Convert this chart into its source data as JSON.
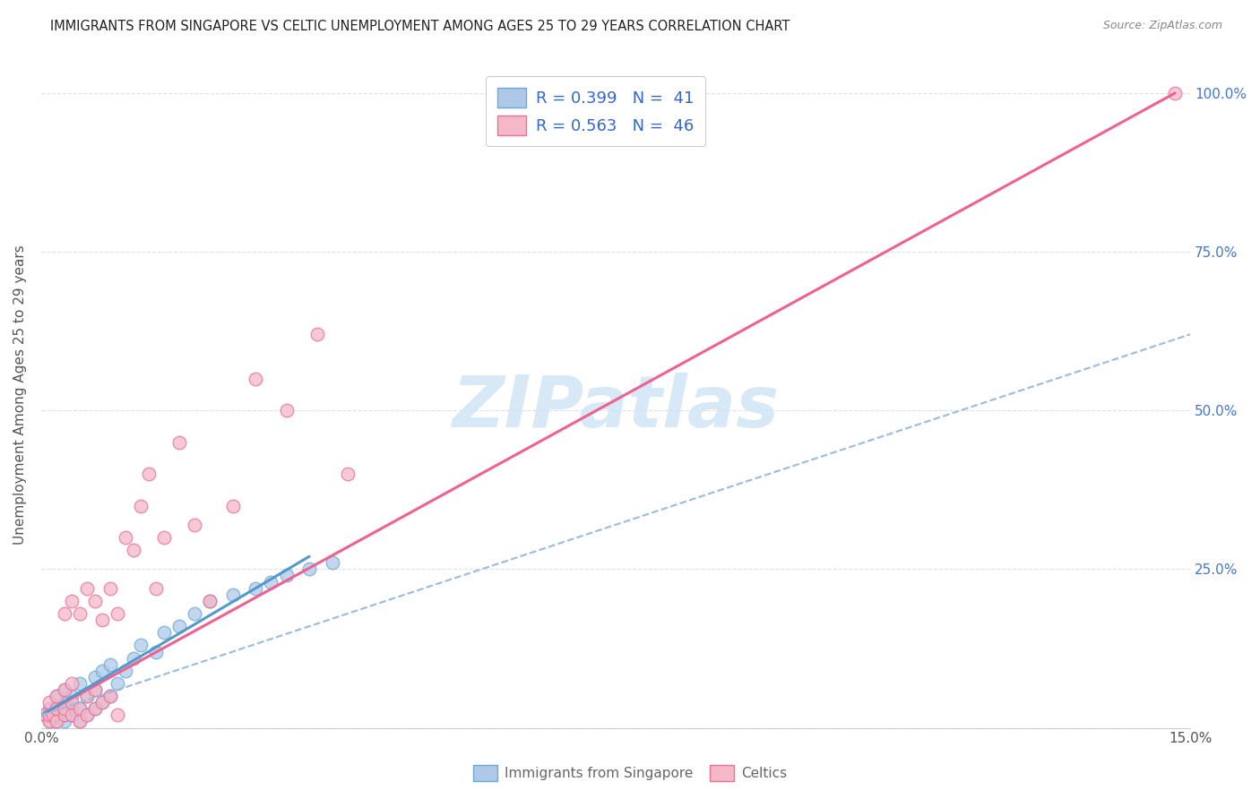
{
  "title": "IMMIGRANTS FROM SINGAPORE VS CELTIC UNEMPLOYMENT AMONG AGES 25 TO 29 YEARS CORRELATION CHART",
  "source": "Source: ZipAtlas.com",
  "ylabel": "Unemployment Among Ages 25 to 29 years",
  "xlim": [
    0,
    0.15
  ],
  "ylim": [
    0,
    1.05
  ],
  "xtick_positions": [
    0.0,
    0.025,
    0.05,
    0.075,
    0.1,
    0.125,
    0.15
  ],
  "xticklabels": [
    "0.0%",
    "",
    "",
    "",
    "",
    "",
    "15.0%"
  ],
  "ytick_positions": [
    0.0,
    0.25,
    0.5,
    0.75,
    1.0
  ],
  "yticklabels_right": [
    "",
    "25.0%",
    "50.0%",
    "75.0%",
    "100.0%"
  ],
  "legend_r1": "R = 0.399",
  "legend_n1": "N =  41",
  "legend_r2": "R = 0.563",
  "legend_n2": "N =  46",
  "legend_label1": "Immigrants from Singapore",
  "legend_label2": "Celtics",
  "color_singapore_fill": "#aec9e8",
  "color_singapore_edge": "#6aaad4",
  "color_celtics_fill": "#f5b8c8",
  "color_celtics_edge": "#e8709a",
  "color_singapore_line": "#5599cc",
  "color_celtics_line": "#f06090",
  "color_dashed": "#99bbdd",
  "watermark_color": "#d0e5f5",
  "background_color": "#ffffff",
  "grid_color": "#dddddd",
  "title_color": "#222222",
  "source_color": "#888888",
  "ylabel_color": "#555555",
  "right_tick_color": "#4477cc",
  "legend_text_color": "#3366cc",
  "bottom_legend_color": "#666666",
  "singapore_scatter_x": [
    0.0005,
    0.001,
    0.001,
    0.0015,
    0.002,
    0.002,
    0.002,
    0.003,
    0.003,
    0.003,
    0.003,
    0.004,
    0.004,
    0.004,
    0.005,
    0.005,
    0.005,
    0.006,
    0.006,
    0.007,
    0.007,
    0.007,
    0.008,
    0.008,
    0.009,
    0.009,
    0.01,
    0.011,
    0.012,
    0.013,
    0.015,
    0.016,
    0.018,
    0.02,
    0.022,
    0.025,
    0.028,
    0.03,
    0.032,
    0.035,
    0.038
  ],
  "singapore_scatter_y": [
    0.02,
    0.01,
    0.03,
    0.02,
    0.01,
    0.03,
    0.05,
    0.01,
    0.02,
    0.04,
    0.06,
    0.02,
    0.03,
    0.05,
    0.01,
    0.03,
    0.07,
    0.02,
    0.05,
    0.03,
    0.06,
    0.08,
    0.04,
    0.09,
    0.05,
    0.1,
    0.07,
    0.09,
    0.11,
    0.13,
    0.12,
    0.15,
    0.16,
    0.18,
    0.2,
    0.21,
    0.22,
    0.23,
    0.24,
    0.25,
    0.26
  ],
  "celtics_scatter_x": [
    0.0005,
    0.001,
    0.001,
    0.001,
    0.0015,
    0.002,
    0.002,
    0.002,
    0.003,
    0.003,
    0.003,
    0.003,
    0.004,
    0.004,
    0.004,
    0.004,
    0.005,
    0.005,
    0.005,
    0.006,
    0.006,
    0.006,
    0.007,
    0.007,
    0.007,
    0.008,
    0.008,
    0.009,
    0.009,
    0.01,
    0.01,
    0.011,
    0.012,
    0.013,
    0.014,
    0.015,
    0.016,
    0.018,
    0.02,
    0.022,
    0.025,
    0.028,
    0.032,
    0.036,
    0.04,
    0.148
  ],
  "celtics_scatter_y": [
    0.02,
    0.01,
    0.02,
    0.04,
    0.02,
    0.01,
    0.03,
    0.05,
    0.02,
    0.03,
    0.06,
    0.18,
    0.02,
    0.04,
    0.07,
    0.2,
    0.01,
    0.03,
    0.18,
    0.02,
    0.05,
    0.22,
    0.03,
    0.06,
    0.2,
    0.04,
    0.17,
    0.05,
    0.22,
    0.02,
    0.18,
    0.3,
    0.28,
    0.35,
    0.4,
    0.22,
    0.3,
    0.45,
    0.32,
    0.2,
    0.35,
    0.55,
    0.5,
    0.62,
    0.4,
    1.0
  ],
  "singapore_line_x": [
    0.0,
    0.035
  ],
  "singapore_line_y": [
    0.02,
    0.27
  ],
  "celtics_line_x": [
    0.0,
    0.148
  ],
  "celtics_line_y": [
    0.02,
    1.0
  ],
  "dashed_line_x": [
    0.0,
    0.15
  ],
  "dashed_line_y": [
    0.02,
    0.62
  ]
}
